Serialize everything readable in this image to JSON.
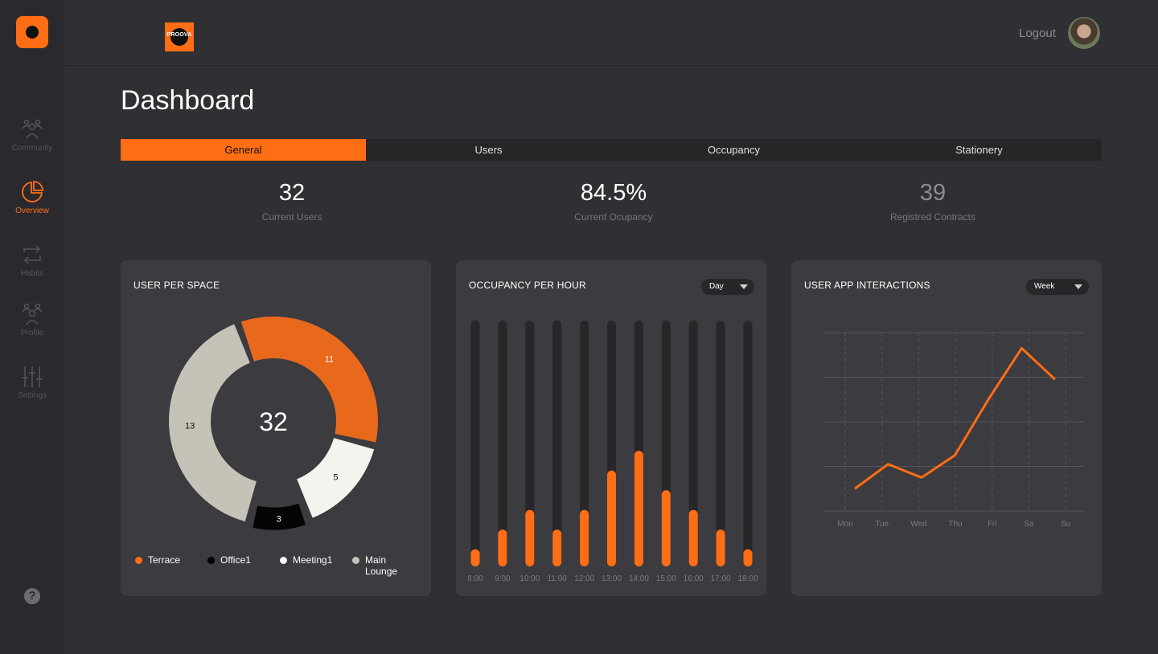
{
  "sidebar": {
    "items": [
      {
        "label": "Community",
        "icon": "community-icon",
        "active": false
      },
      {
        "label": "Overview",
        "icon": "pie-chart-icon",
        "active": true
      },
      {
        "label": "Habits",
        "icon": "repeat-icon",
        "active": false
      },
      {
        "label": "Profile",
        "icon": "profile-icon",
        "active": false
      },
      {
        "label": "Settings",
        "icon": "sliders-icon",
        "active": false
      }
    ],
    "help_label": "?"
  },
  "header": {
    "brand_text": "PROOVA",
    "logout_label": "Logout"
  },
  "page": {
    "title": "Dashboard"
  },
  "tabs": [
    {
      "label": "General",
      "active": true
    },
    {
      "label": "Users",
      "active": false
    },
    {
      "label": "Occupancy",
      "active": false
    },
    {
      "label": "Stationery",
      "active": false
    }
  ],
  "stats": [
    {
      "value": "32",
      "label": "Current Users"
    },
    {
      "value": "84.5%",
      "label": "Current Ocupancy"
    },
    {
      "value": "39",
      "label": "Registred Contracts"
    }
  ],
  "colors": {
    "accent": "#ff6d14",
    "background": "#303034",
    "card": "#3b3b40",
    "track": "#27272a"
  },
  "cards": {
    "user_per_space": {
      "title": "USER PER SPACE"
    },
    "occupancy": {
      "title": "OCCUPANCY PER HOUR",
      "dropdown": "Day"
    },
    "interactions": {
      "title": "USER APP INTERACTIONS",
      "dropdown": "Week"
    }
  },
  "chart_data": [
    {
      "type": "pie",
      "title": "USER PER SPACE",
      "center_label": "32",
      "categories": [
        "Terrace",
        "Meeting1",
        "Office1",
        "Main Lounge"
      ],
      "values": [
        11,
        5,
        3,
        13
      ],
      "colors": [
        "#e8681c",
        "#f4f4ee",
        "#050505",
        "#c5c3b7"
      ],
      "legend_order": [
        "Terrace",
        "Office1",
        "Meeting1",
        "Main Lounge"
      ],
      "legend_colors": [
        "#ff6d14",
        "#000000",
        "#ffffff",
        "#c5c3b7"
      ]
    },
    {
      "type": "bar",
      "title": "OCCUPANCY PER HOUR",
      "categories": [
        "8:00",
        "9:00",
        "10:00",
        "11:00",
        "12:00",
        "13:00",
        "14:00",
        "15:00",
        "16:00",
        "17:00",
        "18:00"
      ],
      "values": [
        7,
        15,
        23,
        15,
        23,
        39,
        47,
        31,
        23,
        15,
        7
      ],
      "ylim": [
        0,
        100
      ]
    },
    {
      "type": "line",
      "title": "USER APP INTERACTIONS",
      "categories": [
        "Mon",
        "Tue",
        "Wed",
        "Thu",
        "Fri",
        "Sa",
        "Su"
      ],
      "values": [
        1,
        2.1,
        1.5,
        2.5,
        5,
        7.3,
        5.9
      ],
      "ylim": [
        0,
        8
      ],
      "grid": true
    }
  ]
}
